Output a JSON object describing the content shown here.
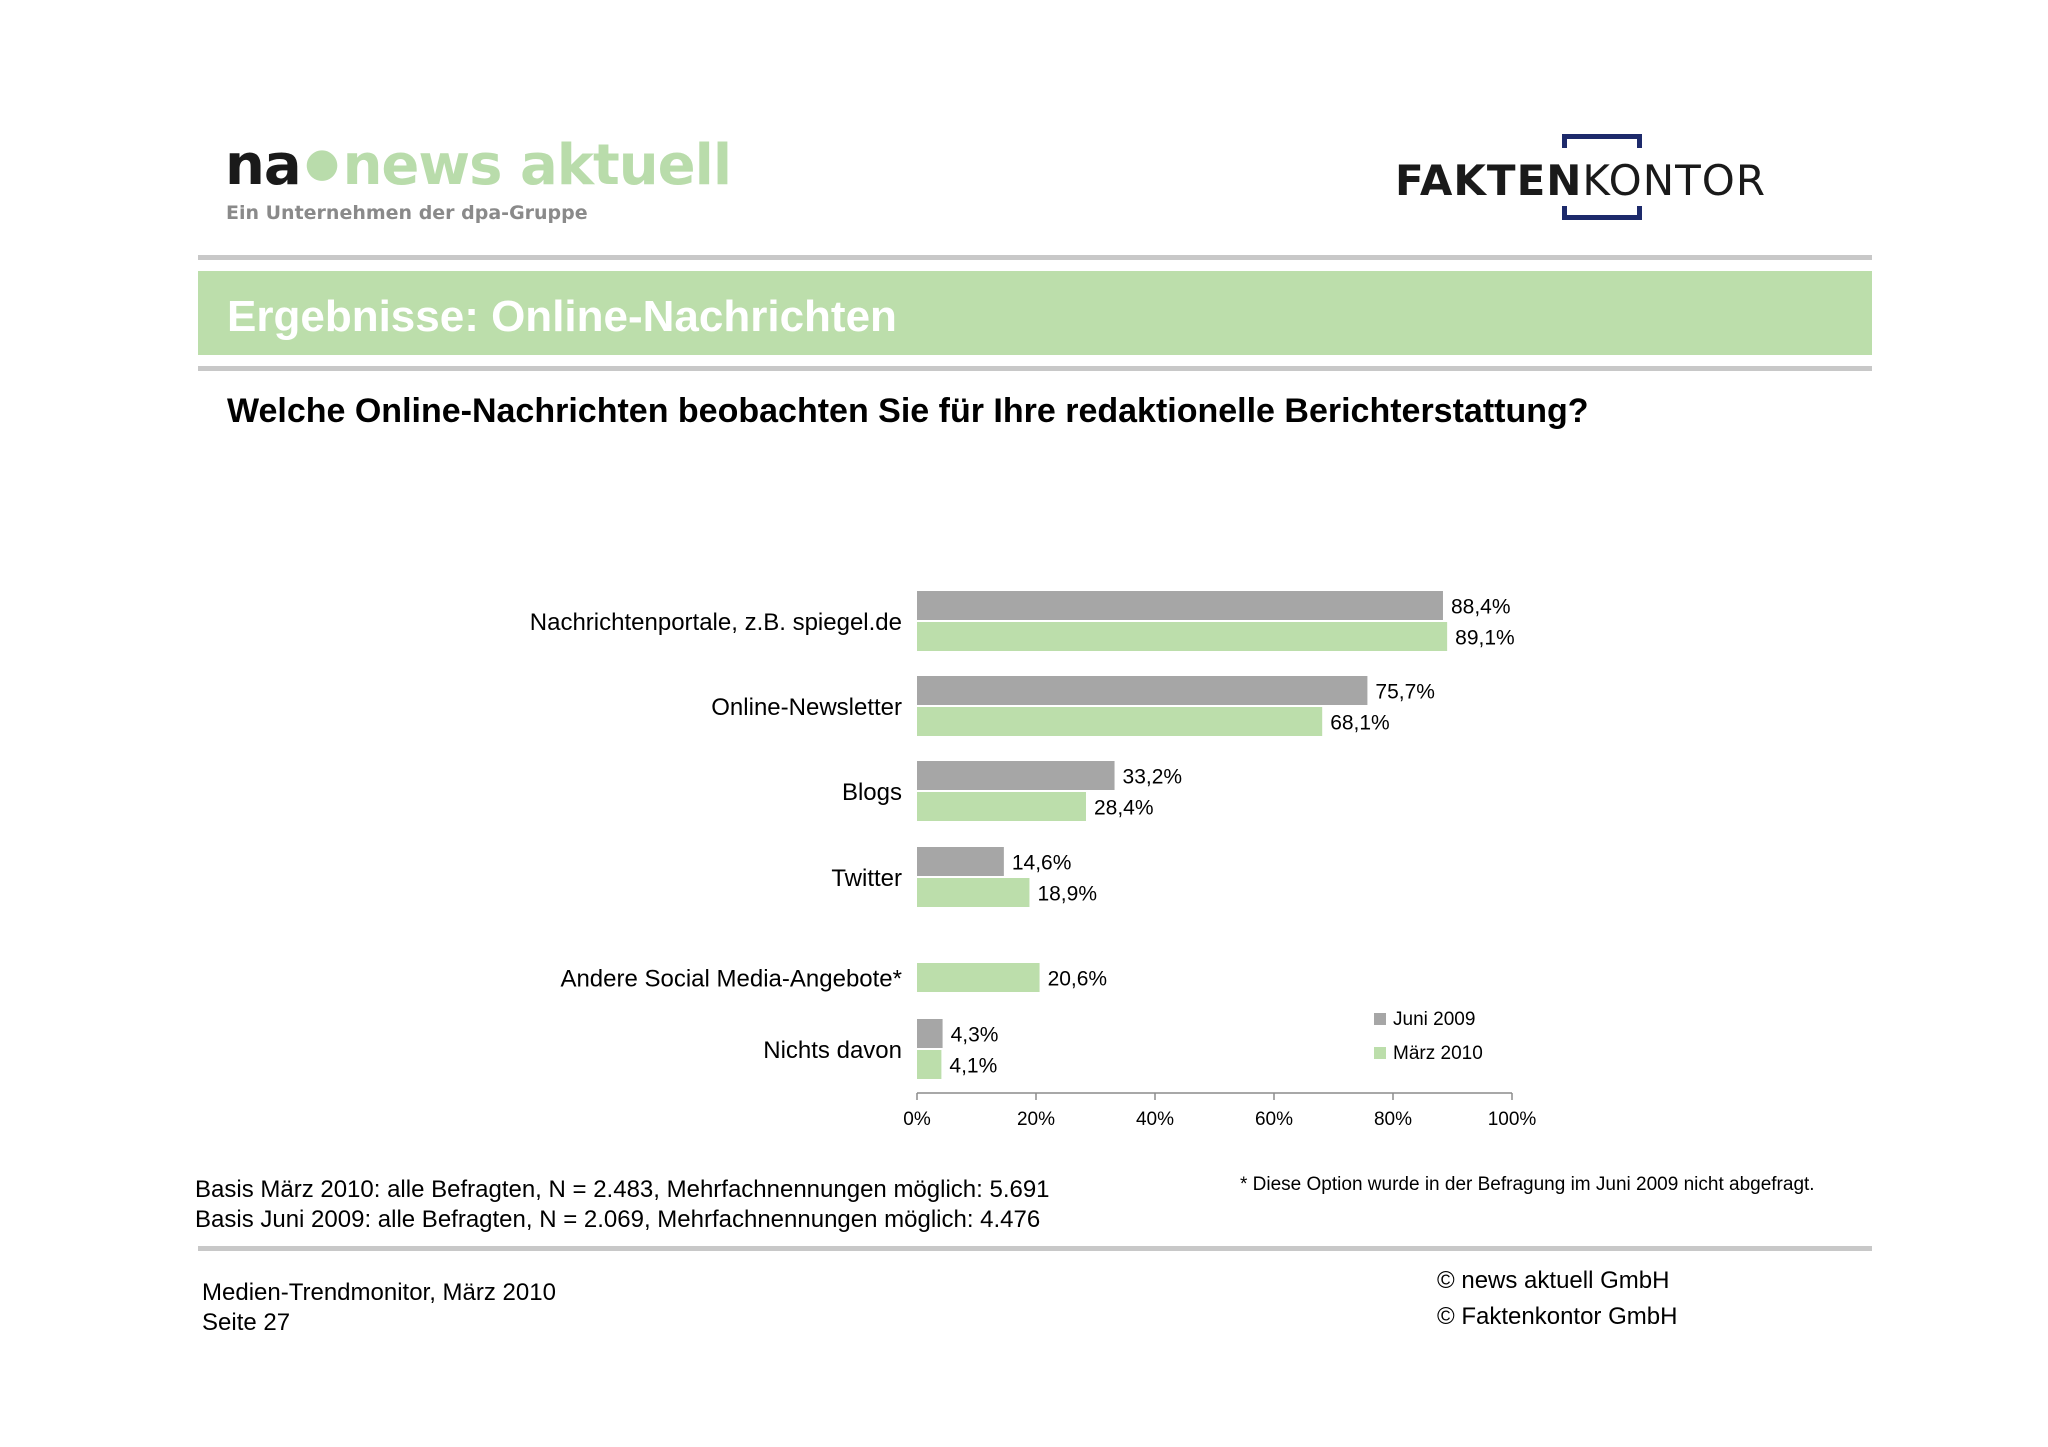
{
  "header": {
    "logo_left": {
      "part1": "na",
      "part2": "news aktuell",
      "subtitle": "Ein Unternehmen der dpa-Gruppe"
    },
    "logo_right": {
      "part1": "FAKTEN",
      "part2": "KONTOR"
    },
    "title": "Ergebnisse: Online-Nachrichten",
    "question": "Welche Online-Nachrichten beobachten Sie für Ihre redaktionelle Berichterstattung?"
  },
  "colors": {
    "juni_2009": "#a6a6a6",
    "maerz_2010": "#bcdeab",
    "banner": "#bcdeab",
    "bracket": "#1d2a6b"
  },
  "chart_data": {
    "type": "bar",
    "orientation": "horizontal",
    "categories": [
      "Nachrichtenportale, z.B. spiegel.de",
      "Online-Newsletter",
      "Blogs",
      "Twitter",
      "Andere Social Media-Angebote*",
      "Nichts davon"
    ],
    "series": [
      {
        "name": "Juni 2009",
        "values": [
          88.4,
          75.7,
          33.2,
          14.6,
          null,
          4.3
        ],
        "labels": [
          "88,4%",
          "75,7%",
          "33,2%",
          "14,6%",
          null,
          "4,3%"
        ]
      },
      {
        "name": "März 2010",
        "values": [
          89.1,
          68.1,
          28.4,
          18.9,
          20.6,
          4.1
        ],
        "labels": [
          "89,1%",
          "68,1%",
          "28,4%",
          "18,9%",
          "20,6%",
          "4,1%"
        ]
      }
    ],
    "x_ticks": [
      "0%",
      "20%",
      "40%",
      "60%",
      "80%",
      "100%"
    ],
    "xlim": [
      0,
      100
    ],
    "grid": false,
    "legend_position": "bottom-right"
  },
  "notes": {
    "basis_1": "Basis März 2010: alle Befragten, N = 2.483, Mehrfachnennungen möglich: 5.691",
    "basis_2": "Basis Juni 2009: alle Befragten, N = 2.069, Mehrfachnennungen möglich: 4.476",
    "footnote": "* Diese Option wurde in der Befragung im Juni 2009 nicht abgefragt."
  },
  "footer": {
    "report": "Medien-Trendmonitor, März 2010",
    "page": "Seite 27",
    "copyright_1": "© news aktuell GmbH",
    "copyright_2": "© Faktenkontor GmbH"
  }
}
